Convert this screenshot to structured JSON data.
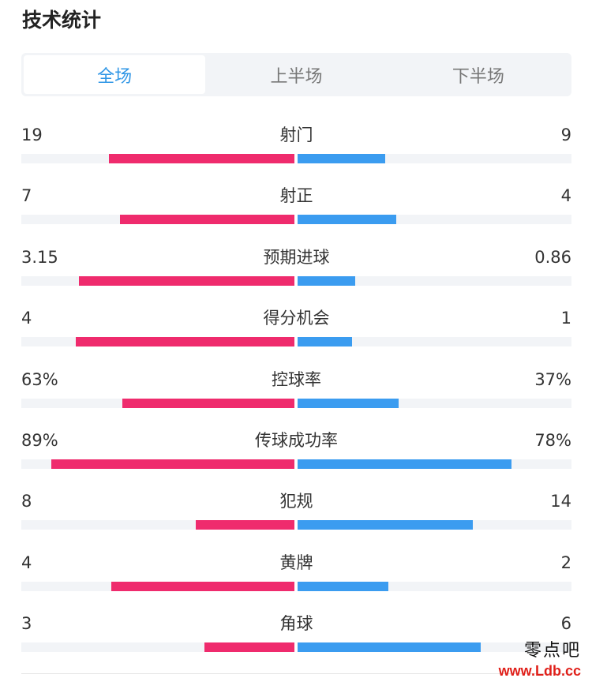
{
  "page": {
    "title": "技术统计"
  },
  "tabs": [
    {
      "label": "全场",
      "active": true
    },
    {
      "label": "上半场",
      "active": false
    },
    {
      "label": "下半场",
      "active": false
    }
  ],
  "colors": {
    "home": "#ef2b6d",
    "away": "#3b9cf0",
    "active_tab": "#3197e6"
  },
  "stats": [
    {
      "name": "射门",
      "left": "19",
      "right": "9",
      "left_fill": 0.68,
      "right_fill": 0.32
    },
    {
      "name": "射正",
      "left": "7",
      "right": "4",
      "left_fill": 0.64,
      "right_fill": 0.36
    },
    {
      "name": "预期进球",
      "left": "3.15",
      "right": "0.86",
      "left_fill": 0.79,
      "right_fill": 0.21
    },
    {
      "name": "得分机会",
      "left": "4",
      "right": "1",
      "left_fill": 0.8,
      "right_fill": 0.2
    },
    {
      "name": "控球率",
      "left": "63%",
      "right": "37%",
      "left_fill": 0.63,
      "right_fill": 0.37
    },
    {
      "name": "传球成功率",
      "left": "89%",
      "right": "78%",
      "left_fill": 0.89,
      "right_fill": 0.78
    },
    {
      "name": "犯规",
      "left": "8",
      "right": "14",
      "left_fill": 0.36,
      "right_fill": 0.64
    },
    {
      "name": "黄牌",
      "left": "4",
      "right": "2",
      "left_fill": 0.67,
      "right_fill": 0.33
    },
    {
      "name": "角球",
      "left": "3",
      "right": "6",
      "left_fill": 0.33,
      "right_fill": 0.67
    }
  ],
  "watermark": {
    "cn": "零点吧",
    "url": "www.Ldb.cc"
  }
}
